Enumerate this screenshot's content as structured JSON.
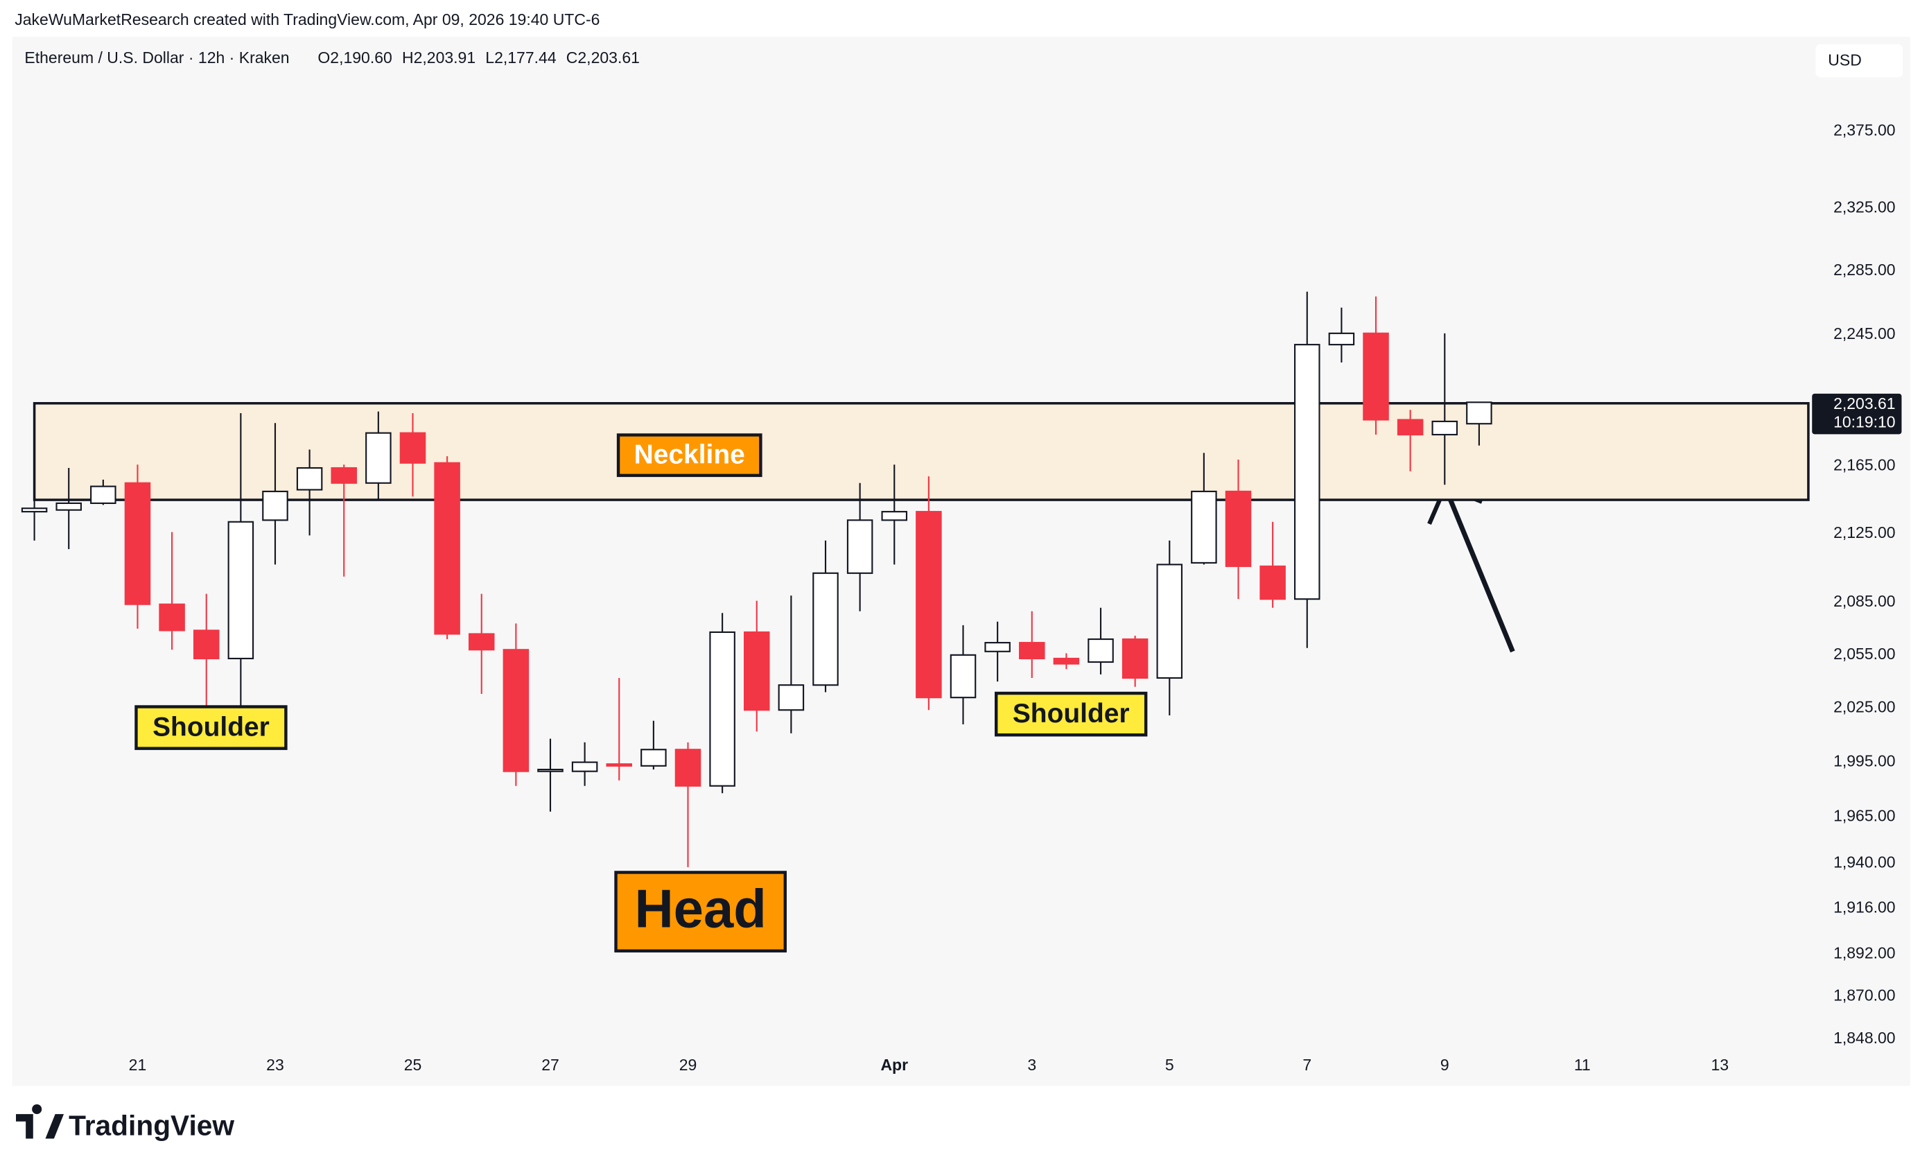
{
  "header": {
    "credit": "JakeWuMarketResearch created with TradingView.com, Apr 09, 2026 19:40 UTC-6"
  },
  "legend": {
    "symbol": "Ethereum / U.S. Dollar · 12h · Kraken",
    "ohlc": [
      "O2,190.60",
      "H2,203.91",
      "L2,177.44",
      "C2,203.61"
    ]
  },
  "currency_button": "USD",
  "footer": {
    "brand": "TradingView"
  },
  "chart_data": {
    "type": "candlestick",
    "x": [
      "2026-03-19T12:00",
      "2026-03-20T00:00",
      "2026-03-20T12:00",
      "2026-03-21T00:00",
      "2026-03-21T12:00",
      "2026-03-22T00:00",
      "2026-03-22T12:00",
      "2026-03-23T00:00",
      "2026-03-23T12:00",
      "2026-03-24T00:00",
      "2026-03-24T12:00",
      "2026-03-25T00:00",
      "2026-03-25T12:00",
      "2026-03-26T00:00",
      "2026-03-26T12:00",
      "2026-03-27T00:00",
      "2026-03-27T12:00",
      "2026-03-28T00:00",
      "2026-03-28T12:00",
      "2026-03-29T00:00",
      "2026-03-29T12:00",
      "2026-03-30T00:00",
      "2026-03-30T12:00",
      "2026-03-31T00:00",
      "2026-03-31T12:00",
      "2026-04-01T00:00",
      "2026-04-01T12:00",
      "2026-04-02T00:00",
      "2026-04-02T12:00",
      "2026-04-03T00:00",
      "2026-04-03T12:00",
      "2026-04-04T00:00",
      "2026-04-04T12:00",
      "2026-04-05T00:00",
      "2026-04-05T12:00",
      "2026-04-06T00:00",
      "2026-04-06T12:00",
      "2026-04-07T00:00",
      "2026-04-07T12:00",
      "2026-04-08T00:00",
      "2026-04-08T12:00",
      "2026-04-09T00:00",
      "2026-04-09T12:00"
    ],
    "open": [
      2138,
      2139,
      2143,
      2155,
      2084,
      2069,
      2053,
      2133,
      2151,
      2164,
      2155,
      2185,
      2167,
      2067,
      2058,
      1990,
      1990,
      1994,
      1993,
      2002,
      1982,
      2068,
      2024,
      2038,
      2102,
      2133,
      2138,
      2031,
      2057,
      2062,
      2053,
      2051,
      2064,
      2042,
      2108,
      2150,
      2106,
      2087,
      2239,
      2246,
      2193,
      2184,
      2190.6
    ],
    "high": [
      2147,
      2164,
      2157,
      2166,
      2126,
      2090,
      2197,
      2191,
      2175,
      2166,
      2198,
      2197,
      2171,
      2090,
      2073,
      2008,
      2006,
      2042,
      2018,
      2006,
      2079,
      2086,
      2089,
      2121,
      2155,
      2166,
      2159,
      2072,
      2074,
      2080,
      2056,
      2082,
      2066,
      2121,
      2173,
      2169,
      2132,
      2272,
      2262,
      2269,
      2199,
      2246,
      2203.91
    ],
    "low": [
      2121,
      2116,
      2142,
      2070,
      2058,
      2026,
      2026,
      2107,
      2124,
      2100,
      2145,
      2147,
      2064,
      2033,
      1982,
      1968,
      1982,
      1985,
      1991,
      1938,
      1978,
      2012,
      2011,
      2034,
      2080,
      2107,
      2024,
      2016,
      2040,
      2042,
      2047,
      2044,
      2037,
      2021,
      2107,
      2087,
      2082,
      2059,
      2228,
      2184,
      2162,
      2154,
      2177.44
    ],
    "close": [
      2140,
      2143,
      2153,
      2084,
      2069,
      2053,
      2132,
      2150,
      2164,
      2155,
      2185,
      2167,
      2067,
      2058,
      1990,
      1991,
      1995,
      1993,
      2002,
      1982,
      2068,
      2024,
      2038,
      2102,
      2133,
      2138,
      2031,
      2055,
      2062,
      2053,
      2050,
      2064,
      2042,
      2107,
      2150,
      2106,
      2087,
      2239,
      2246,
      2193,
      2184,
      2192,
      2203.61
    ],
    "up_color": "#ffffff",
    "down_color": "#f23645",
    "log_scale": true,
    "ylim": [
      1843,
      2409
    ],
    "yticks": [
      {
        "value": 1848,
        "label": "1,848.00"
      },
      {
        "value": 1870,
        "label": "1,870.00"
      },
      {
        "value": 1892,
        "label": "1,892.00"
      },
      {
        "value": 1916,
        "label": "1,916.00"
      },
      {
        "value": 1940,
        "label": "1,940.00"
      },
      {
        "value": 1965,
        "label": "1,965.00"
      },
      {
        "value": 1995,
        "label": "1,995.00"
      },
      {
        "value": 2025,
        "label": "2,025.00"
      },
      {
        "value": 2055,
        "label": "2,055.00"
      },
      {
        "value": 2085,
        "label": "2,085.00"
      },
      {
        "value": 2125,
        "label": "2,125.00"
      },
      {
        "value": 2165,
        "label": "2,165.00"
      },
      {
        "value": 2245,
        "label": "2,245.00"
      },
      {
        "value": 2285,
        "label": "2,285.00"
      },
      {
        "value": 2325,
        "label": "2,325.00"
      },
      {
        "value": 2375,
        "label": "2,375.00"
      }
    ],
    "xlim": [
      "2026-03-19T06:00",
      "2026-04-14T12:00"
    ],
    "xticks": [
      {
        "value": "2026-03-21T00:00",
        "label": "21"
      },
      {
        "value": "2026-03-23T00:00",
        "label": "23"
      },
      {
        "value": "2026-03-25T00:00",
        "label": "25"
      },
      {
        "value": "2026-03-27T00:00",
        "label": "27"
      },
      {
        "value": "2026-03-29T00:00",
        "label": "29"
      },
      {
        "value": "2026-04-01T00:00",
        "label": "Apr"
      },
      {
        "value": "2026-04-03T00:00",
        "label": "3"
      },
      {
        "value": "2026-04-05T00:00",
        "label": "5"
      },
      {
        "value": "2026-04-07T00:00",
        "label": "7"
      },
      {
        "value": "2026-04-09T00:00",
        "label": "9"
      },
      {
        "value": "2026-04-11T00:00",
        "label": "11"
      },
      {
        "value": "2026-04-13T00:00",
        "label": "13"
      }
    ],
    "last_price": {
      "value": 2203.61,
      "label": "2,203.61"
    },
    "countdown": "10:19:10",
    "zone": {
      "start": "2026-03-19T12:00",
      "top": 2203,
      "bottom": 2145,
      "color": "#faeedc"
    },
    "annotations": [
      "Neckline",
      "Shoulder",
      "Shoulder",
      "Head"
    ]
  }
}
